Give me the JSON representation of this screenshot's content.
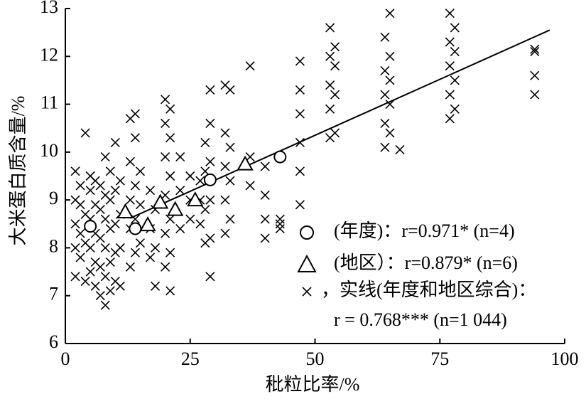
{
  "chart_data": {
    "type": "scatter",
    "x_label": "秕粒比率/%",
    "y_label": "大米蛋白质含量/%",
    "xlim": [
      0,
      100
    ],
    "ylim": [
      6,
      13
    ],
    "xticks": [
      0,
      25,
      50,
      75,
      100
    ],
    "yticks": [
      6,
      7,
      8,
      9,
      10,
      11,
      12,
      13
    ],
    "columns": [
      {
        "x": 2,
        "y": [
          7.4,
          8.0,
          8.5,
          9.0,
          9.6
        ]
      },
      {
        "x": 3,
        "y": [
          7.8,
          8.3,
          8.9,
          9.3
        ]
      },
      {
        "x": 4,
        "y": [
          7.3,
          8.1,
          8.7,
          10.4
        ]
      },
      {
        "x": 5,
        "y": [
          7.5,
          8.0,
          8.6,
          9.2,
          9.5
        ]
      },
      {
        "x": 6,
        "y": [
          7.2,
          7.7,
          8.3,
          8.9,
          9.4
        ]
      },
      {
        "x": 7,
        "y": [
          7.0,
          7.6,
          8.2,
          8.8,
          9.3
        ]
      },
      {
        "x": 8,
        "y": [
          6.8,
          7.4,
          8.0,
          8.6,
          9.1,
          9.9
        ]
      },
      {
        "x": 9,
        "y": [
          7.1,
          7.7,
          8.4,
          9.0,
          9.6
        ]
      },
      {
        "x": 10,
        "y": [
          7.3,
          7.9,
          8.5,
          9.2,
          10.2
        ]
      },
      {
        "x": 11,
        "y": [
          7.2,
          8.0,
          8.7,
          9.4
        ]
      },
      {
        "x": 13,
        "y": [
          7.6,
          8.4,
          9.0,
          9.8,
          10.7
        ]
      },
      {
        "x": 14,
        "y": [
          7.9,
          8.6,
          9.3,
          10.3,
          10.8
        ]
      },
      {
        "x": 15,
        "y": [
          8.1,
          8.9,
          9.6
        ]
      },
      {
        "x": 17,
        "y": [
          7.8,
          8.4,
          9.2
        ]
      },
      {
        "x": 18,
        "y": [
          7.2,
          8.0,
          8.8
        ]
      },
      {
        "x": 20,
        "y": [
          7.6,
          8.3,
          9.1,
          9.9,
          10.6,
          11.1
        ]
      },
      {
        "x": 21,
        "y": [
          7.1,
          7.9,
          8.6,
          9.5,
          10.3,
          10.9
        ]
      },
      {
        "x": 23,
        "y": [
          8.4,
          9.2,
          9.9
        ]
      },
      {
        "x": 25,
        "y": [
          8.6,
          9.0,
          9.5
        ]
      },
      {
        "x": 27,
        "y": [
          8.5,
          9.0,
          9.4
        ]
      },
      {
        "x": 28,
        "y": [
          8.1,
          8.8,
          9.6,
          10.2
        ]
      },
      {
        "x": 29,
        "y": [
          7.4,
          8.2,
          9.0,
          9.8,
          10.6,
          11.3
        ]
      },
      {
        "x": 32,
        "y": [
          8.3,
          9.0,
          9.7,
          10.4,
          11.4
        ]
      },
      {
        "x": 33,
        "y": [
          8.6,
          9.4,
          10.1,
          11.3
        ]
      },
      {
        "x": 37,
        "y": [
          9.3,
          9.9,
          11.8
        ]
      },
      {
        "x": 40,
        "y": [
          8.2,
          8.6,
          9.1,
          9.7
        ]
      },
      {
        "x": 43,
        "y": [
          8.4,
          8.5,
          8.6
        ]
      },
      {
        "x": 47,
        "y": [
          8.9,
          9.6,
          10.2,
          10.8,
          11.3,
          11.9
        ]
      },
      {
        "x": 53,
        "y": [
          10.3,
          10.9,
          11.4,
          12.0,
          12.6
        ]
      },
      {
        "x": 54,
        "y": [
          10.4,
          11.2,
          11.8,
          12.2
        ]
      },
      {
        "x": 64,
        "y": [
          10.1,
          10.6,
          11.2,
          11.7,
          12.4
        ]
      },
      {
        "x": 65,
        "y": [
          10.4,
          11.0,
          11.5,
          12.0,
          12.9
        ]
      },
      {
        "x": 67,
        "y": [
          10.05
        ]
      },
      {
        "x": 77,
        "y": [
          10.7,
          11.2,
          11.8,
          12.3,
          12.9
        ]
      },
      {
        "x": 78,
        "y": [
          10.9,
          11.5,
          12.1,
          12.6
        ]
      },
      {
        "x": 94,
        "y": [
          11.2,
          11.6,
          12.1,
          12.15
        ]
      }
    ],
    "year_points": {
      "x": [
        5,
        14,
        29,
        43
      ],
      "y": [
        8.45,
        8.4,
        9.42,
        9.9
      ]
    },
    "region_points": {
      "x": [
        12,
        16.5,
        22,
        36,
        19,
        26
      ],
      "y": [
        8.75,
        8.48,
        8.8,
        9.75,
        8.95,
        9.0
      ]
    },
    "fit_line": {
      "x": [
        13,
        97
      ],
      "y": [
        8.62,
        12.55
      ]
    },
    "legend": [
      "(年度)：r=0.971* (n=4)",
      "(地区）：r=0.879* (n=6)",
      "，实线(年度和地区综合)：",
      "r = 0.768*** (n=1 044)"
    ]
  }
}
